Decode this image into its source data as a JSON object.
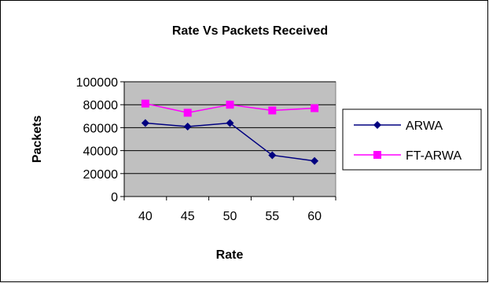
{
  "chart_data": {
    "type": "line",
    "title": "Rate Vs Packets Received",
    "xlabel": "Rate",
    "ylabel": "Packets",
    "categories": [
      "40",
      "45",
      "50",
      "55",
      "60"
    ],
    "ylim": [
      0,
      100000
    ],
    "yticks": [
      "0",
      "20000",
      "40000",
      "60000",
      "80000",
      "100000"
    ],
    "ytick_values": [
      0,
      20000,
      40000,
      60000,
      80000,
      100000
    ],
    "grid": true,
    "plot_background": "#c0c0c0",
    "legend_position": "right",
    "series": [
      {
        "name": "ARWA",
        "values": [
          64000,
          61000,
          64000,
          36000,
          31000
        ],
        "color": "#000080",
        "marker": "diamond"
      },
      {
        "name": "FT-ARWA",
        "values": [
          81000,
          73000,
          80000,
          75000,
          77000
        ],
        "color": "#ff00ff",
        "marker": "square"
      }
    ]
  }
}
